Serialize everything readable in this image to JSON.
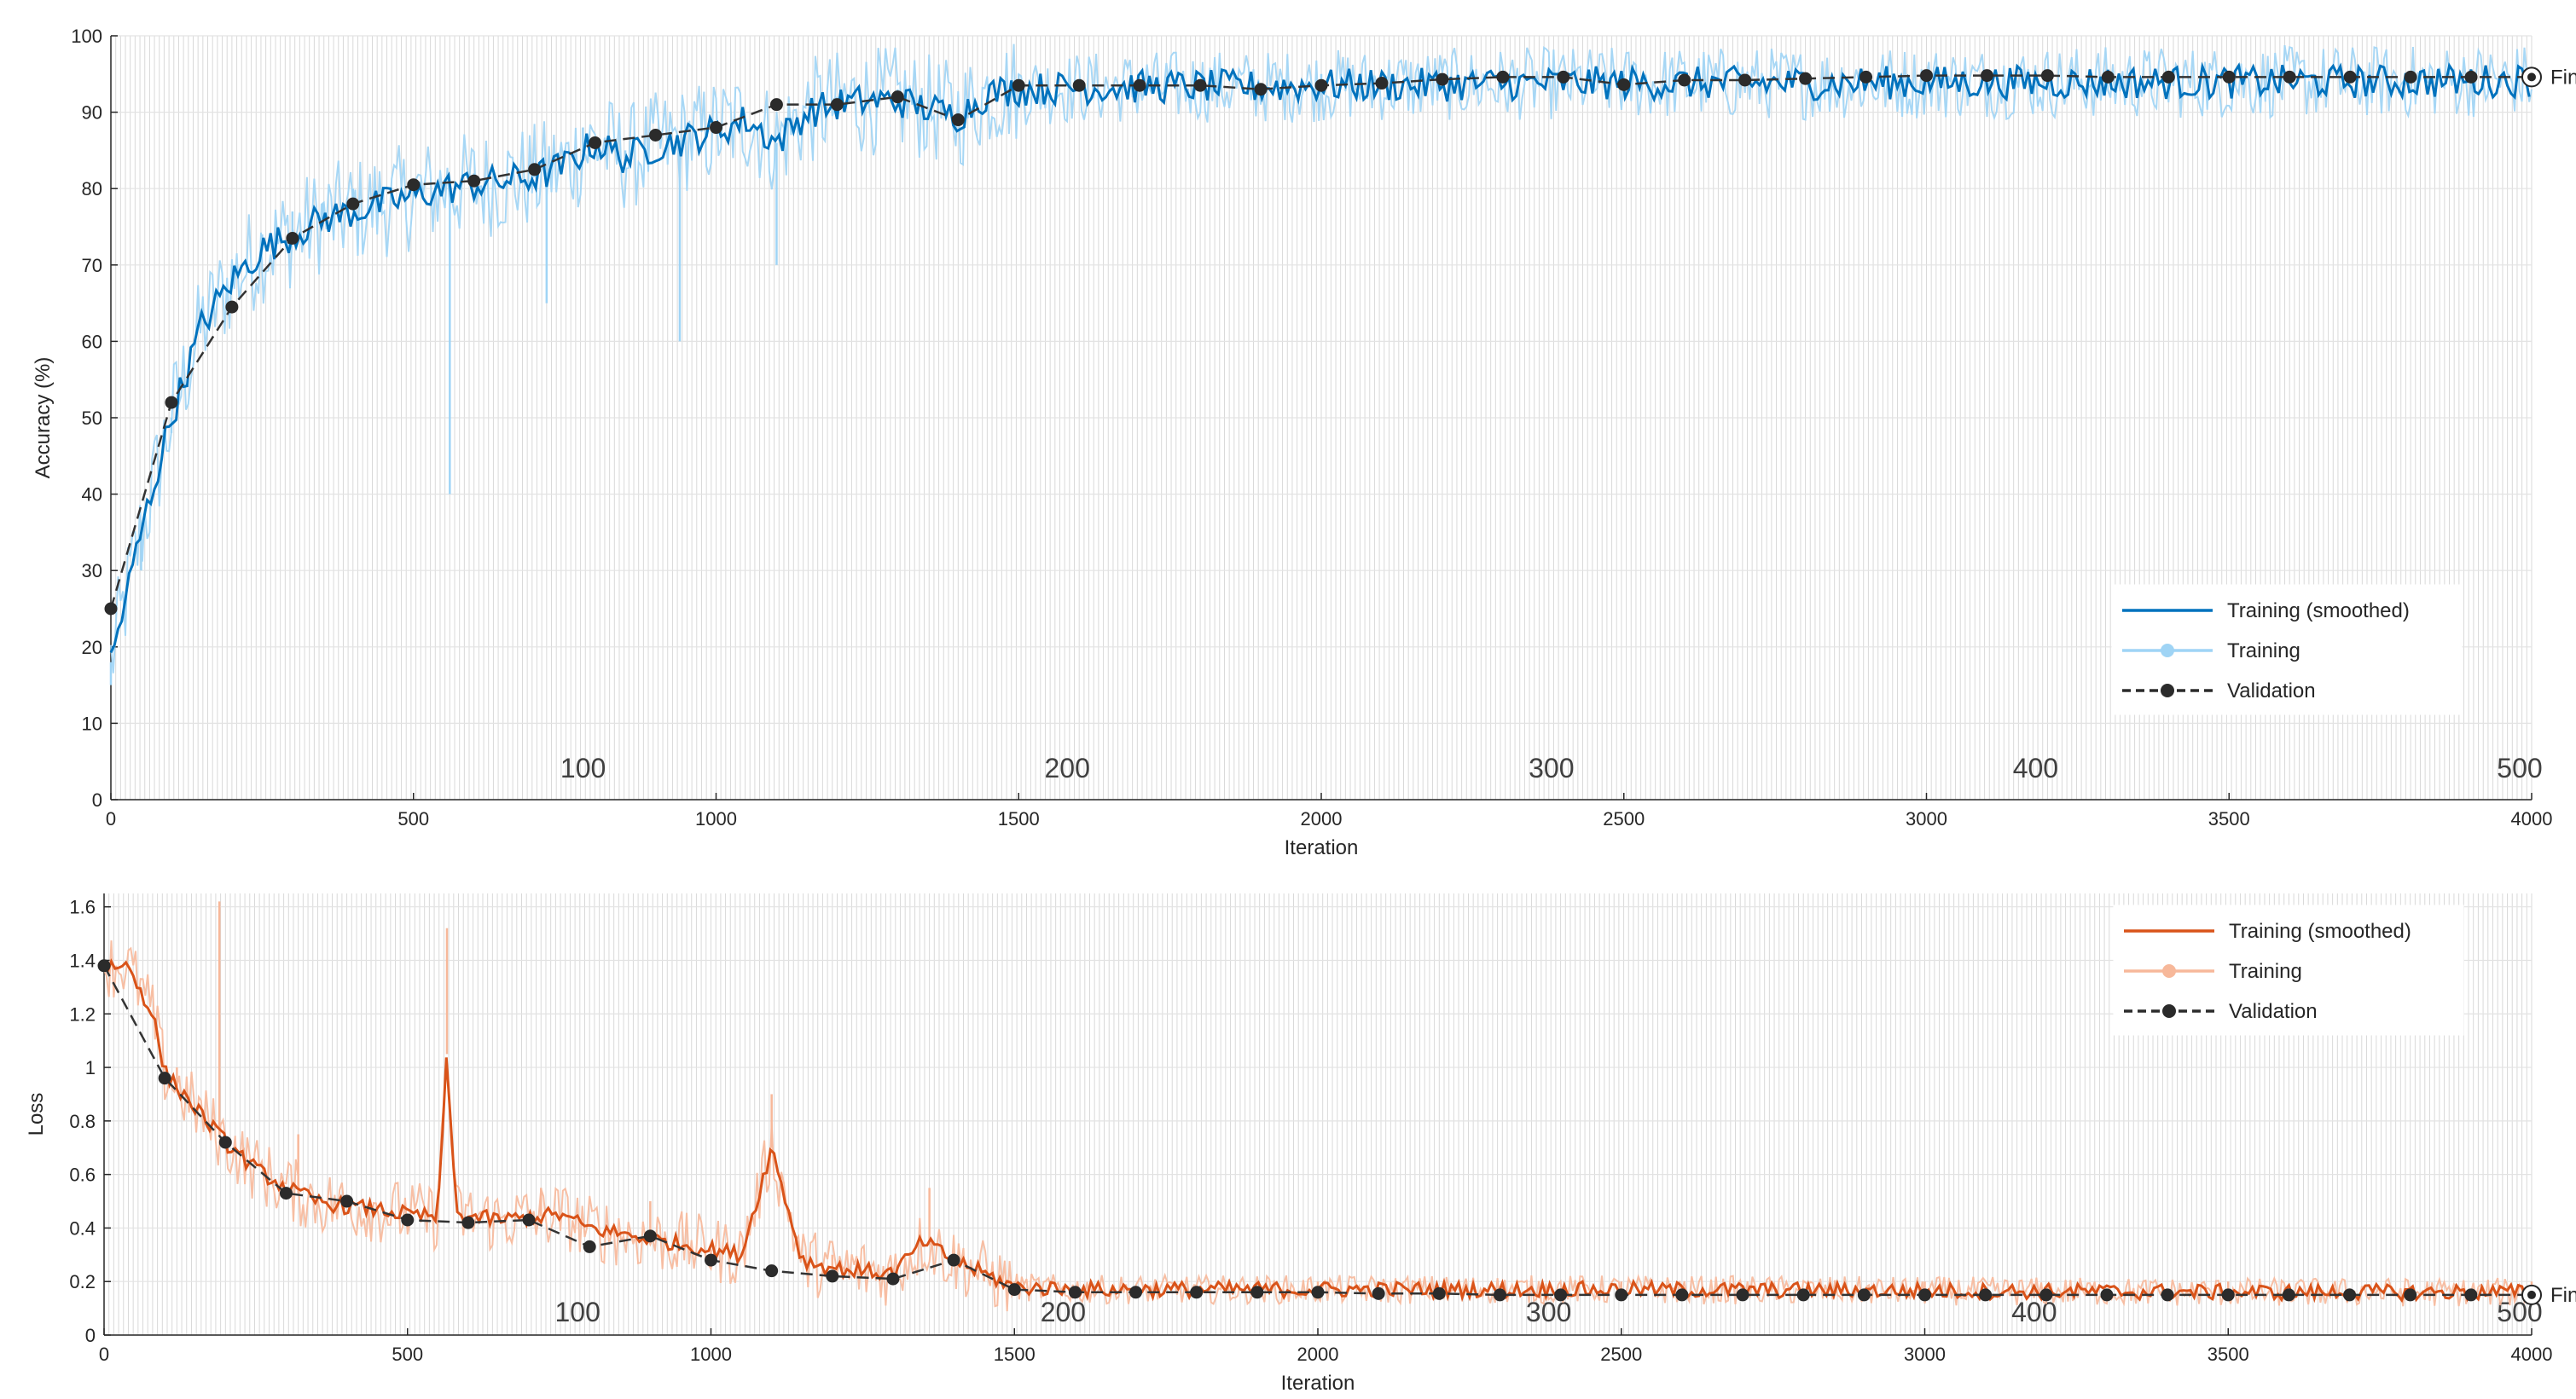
{
  "chart_data": [
    {
      "type": "line",
      "panel": "accuracy",
      "title": "",
      "xlabel": "Iteration",
      "ylabel": "Accuracy (%)",
      "xlim": [
        0,
        4000
      ],
      "ylim": [
        0,
        100
      ],
      "x_ticks": [
        0,
        500,
        1000,
        1500,
        2000,
        2500,
        3000,
        3500,
        4000
      ],
      "y_ticks": [
        0,
        10,
        20,
        30,
        40,
        50,
        60,
        70,
        80,
        90,
        100
      ],
      "epoch_markers": [
        {
          "label": "100",
          "x": 800
        },
        {
          "label": "200",
          "x": 1600
        },
        {
          "label": "300",
          "x": 2400
        },
        {
          "label": "400",
          "x": 3200
        },
        {
          "label": "500",
          "x": 4000
        }
      ],
      "final_label": "Final",
      "grid": true,
      "legend_position": "bottom-right",
      "legend": [
        "Training (smoothed)",
        "Training",
        "Validation"
      ],
      "colors": {
        "smoothed": "#0072BD",
        "raw": "#9fd4f5",
        "validation": "#333333"
      },
      "validation": {
        "x": [
          0,
          100,
          200,
          300,
          400,
          500,
          600,
          700,
          800,
          900,
          1000,
          1100,
          1200,
          1300,
          1400,
          1500,
          1600,
          1700,
          1800,
          1900,
          2000,
          2100,
          2200,
          2300,
          2400,
          2500,
          2600,
          2700,
          2800,
          2900,
          3000,
          3100,
          3200,
          3300,
          3400,
          3500,
          3600,
          3700,
          3800,
          3900,
          4000
        ],
        "y": [
          25,
          52,
          64.5,
          73.5,
          78,
          80.5,
          81,
          82.5,
          86,
          87,
          88,
          91,
          91,
          92,
          89,
          93.5,
          93.5,
          93.5,
          93.5,
          93,
          93.5,
          93.8,
          94.3,
          94.6,
          94.6,
          93.6,
          94.2,
          94.2,
          94.4,
          94.6,
          94.8,
          94.8,
          94.8,
          94.6,
          94.6,
          94.6,
          94.6,
          94.6,
          94.6,
          94.6,
          94.6
        ]
      },
      "training_smoothed": {
        "x": [
          0,
          50,
          100,
          150,
          200,
          250,
          300,
          350,
          400,
          450,
          500,
          550,
          600,
          650,
          700,
          750,
          800,
          850,
          900,
          950,
          1000,
          1050,
          1100,
          1150,
          1200,
          1250,
          1300,
          1350,
          1400,
          1450,
          1500,
          1600,
          1700,
          1800,
          1900,
          2000,
          2200,
          2400,
          2600,
          2800,
          3000,
          3200,
          3400,
          3600,
          3800,
          4000
        ],
        "y": [
          18,
          35,
          50,
          62,
          68,
          72,
          74,
          76,
          77,
          78,
          79,
          80,
          80.5,
          81,
          81.5,
          83,
          86,
          84,
          85.5,
          86.5,
          87.5,
          89,
          86,
          90,
          91,
          91.5,
          91.5,
          90.5,
          89.5,
          92.5,
          93,
          93.2,
          93.3,
          93.4,
          93.3,
          93.5,
          93.6,
          93.8,
          93.8,
          93.8,
          93.9,
          93.9,
          93.9,
          94,
          94,
          94.2
        ]
      },
      "training_raw_approx": {
        "x": [
          0,
          50,
          100,
          150,
          200,
          250,
          300,
          350,
          400,
          450,
          500,
          560,
          600,
          650,
          700,
          720,
          780,
          850,
          940,
          1000,
          1100,
          1200,
          1300,
          1400,
          1500,
          2000,
          2500,
          3000,
          3500,
          4000
        ],
        "y": [
          15,
          30,
          48,
          62,
          70,
          74,
          77,
          78,
          80,
          80,
          81,
          40,
          82,
          80,
          82,
          65,
          88,
          85,
          60,
          88,
          70,
          92,
          93,
          90,
          95,
          95,
          95,
          95,
          95,
          95
        ]
      },
      "final": {
        "x": 4000,
        "y": 94.6
      }
    },
    {
      "type": "line",
      "panel": "loss",
      "title": "",
      "xlabel": "Iteration",
      "ylabel": "Loss",
      "xlim": [
        0,
        4000
      ],
      "ylim": [
        0,
        1.65
      ],
      "x_ticks": [
        0,
        500,
        1000,
        1500,
        2000,
        2500,
        3000,
        3500,
        4000
      ],
      "y_ticks": [
        0,
        0.2,
        0.4,
        0.6,
        0.8,
        1,
        1.2,
        1.4,
        1.6
      ],
      "y_tick_labels": [
        "0",
        "0.2",
        "0.4",
        "0.6",
        "0.8",
        "1",
        "1.2",
        "1.4",
        "1.6"
      ],
      "epoch_markers": [
        {
          "label": "100",
          "x": 800
        },
        {
          "label": "200",
          "x": 1600
        },
        {
          "label": "300",
          "x": 2400
        },
        {
          "label": "400",
          "x": 3200
        },
        {
          "label": "500",
          "x": 4000
        }
      ],
      "final_label": "Final",
      "grid": true,
      "legend_position": "top-right",
      "legend": [
        "Training (smoothed)",
        "Training",
        "Validation"
      ],
      "colors": {
        "smoothed": "#D95319",
        "raw": "#f7b89a",
        "validation": "#333333"
      },
      "validation": {
        "x": [
          0,
          100,
          200,
          300,
          400,
          500,
          600,
          700,
          800,
          900,
          1000,
          1100,
          1200,
          1300,
          1400,
          1500,
          1600,
          1700,
          1800,
          1900,
          2000,
          2100,
          2200,
          2300,
          2400,
          2500,
          2600,
          2700,
          2800,
          2900,
          3000,
          3100,
          3200,
          3300,
          3400,
          3500,
          3600,
          3700,
          3800,
          3900,
          4000
        ],
        "y": [
          1.38,
          0.96,
          0.72,
          0.53,
          0.5,
          0.43,
          0.42,
          0.43,
          0.33,
          0.37,
          0.28,
          0.24,
          0.22,
          0.21,
          0.28,
          0.17,
          0.16,
          0.16,
          0.16,
          0.16,
          0.16,
          0.155,
          0.155,
          0.15,
          0.15,
          0.15,
          0.15,
          0.15,
          0.15,
          0.15,
          0.15,
          0.15,
          0.15,
          0.15,
          0.15,
          0.15,
          0.15,
          0.15,
          0.15,
          0.15,
          0.15
        ]
      },
      "training_smoothed": {
        "x": [
          0,
          40,
          80,
          100,
          150,
          200,
          250,
          300,
          350,
          400,
          450,
          500,
          550,
          565,
          580,
          650,
          700,
          750,
          800,
          900,
          1000,
          1050,
          1100,
          1150,
          1200,
          1300,
          1350,
          1400,
          1500,
          1600,
          2000,
          2500,
          3000,
          3500,
          4000
        ],
        "y": [
          1.38,
          1.38,
          1.2,
          0.98,
          0.85,
          0.72,
          0.62,
          0.55,
          0.5,
          0.48,
          0.47,
          0.45,
          0.44,
          1.05,
          0.45,
          0.43,
          0.44,
          0.45,
          0.4,
          0.36,
          0.32,
          0.3,
          0.7,
          0.28,
          0.25,
          0.23,
          0.35,
          0.28,
          0.18,
          0.17,
          0.17,
          0.17,
          0.165,
          0.16,
          0.16
        ]
      },
      "training_raw_approx": {
        "x": [
          0,
          60,
          120,
          190,
          230,
          320,
          400,
          500,
          565,
          650,
          720,
          800,
          900,
          1000,
          1100,
          1200,
          1300,
          1360,
          1450,
          1500,
          2000,
          2500,
          3000,
          3500,
          4000
        ],
        "y": [
          1.38,
          1.3,
          1.0,
          1.62,
          0.7,
          0.75,
          0.5,
          0.4,
          1.52,
          0.45,
          0.55,
          0.4,
          0.5,
          0.3,
          0.9,
          0.3,
          0.25,
          0.55,
          0.2,
          0.2,
          0.2,
          0.2,
          0.2,
          0.2,
          0.2
        ]
      },
      "final": {
        "x": 4000,
        "y": 0.15
      }
    }
  ]
}
